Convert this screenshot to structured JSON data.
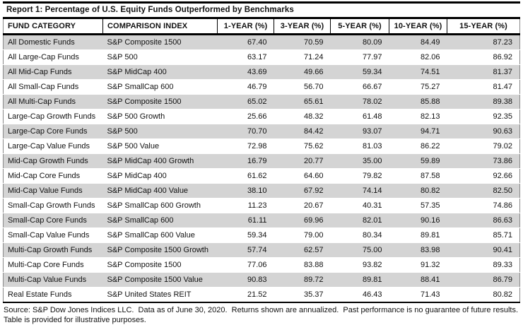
{
  "report": {
    "title": "Report 1: Percentage of U.S. Equity Funds Outperformed by Benchmarks",
    "table": {
      "headers": [
        "FUND CATEGORY",
        "COMPARISON INDEX",
        "1-YEAR (%)",
        "3-YEAR (%)",
        "5-YEAR (%)",
        "10-YEAR (%)",
        "15-YEAR (%)"
      ],
      "rows": [
        [
          "All Domestic Funds",
          "S&P Composite 1500",
          "67.40",
          "70.59",
          "80.09",
          "84.49",
          "87.23"
        ],
        [
          "All Large-Cap Funds",
          "S&P 500",
          "63.17",
          "71.24",
          "77.97",
          "82.06",
          "86.92"
        ],
        [
          "All Mid-Cap Funds",
          "S&P MidCap 400",
          "43.69",
          "49.66",
          "59.34",
          "74.51",
          "81.37"
        ],
        [
          "All Small-Cap Funds",
          "S&P SmallCap 600",
          "46.79",
          "56.70",
          "66.67",
          "75.27",
          "81.47"
        ],
        [
          "All Multi-Cap Funds",
          "S&P Composite 1500",
          "65.02",
          "65.61",
          "78.02",
          "85.88",
          "89.38"
        ],
        [
          "Large-Cap Growth Funds",
          "S&P 500 Growth",
          "25.66",
          "48.32",
          "61.48",
          "82.13",
          "92.35"
        ],
        [
          "Large-Cap Core Funds",
          "S&P 500",
          "70.70",
          "84.42",
          "93.07",
          "94.71",
          "90.63"
        ],
        [
          "Large-Cap Value Funds",
          "S&P 500 Value",
          "72.98",
          "75.62",
          "81.03",
          "86.22",
          "79.02"
        ],
        [
          "Mid-Cap Growth Funds",
          "S&P MidCap 400 Growth",
          "16.79",
          "20.77",
          "35.00",
          "59.89",
          "73.86"
        ],
        [
          "Mid-Cap Core Funds",
          "S&P MidCap 400",
          "61.62",
          "64.60",
          "79.82",
          "87.58",
          "92.66"
        ],
        [
          "Mid-Cap Value Funds",
          "S&P MidCap 400 Value",
          "38.10",
          "67.92",
          "74.14",
          "80.82",
          "82.50"
        ],
        [
          "Small-Cap Growth Funds",
          "S&P SmallCap 600 Growth",
          "11.23",
          "20.67",
          "40.31",
          "57.35",
          "74.86"
        ],
        [
          "Small-Cap Core Funds",
          "S&P SmallCap 600",
          "61.11",
          "69.96",
          "82.01",
          "90.16",
          "86.63"
        ],
        [
          "Small-Cap Value Funds",
          "S&P SmallCap 600 Value",
          "59.34",
          "79.00",
          "80.34",
          "89.81",
          "85.71"
        ],
        [
          "Multi-Cap Growth Funds",
          "S&P Composite 1500 Growth",
          "57.74",
          "62.57",
          "75.00",
          "83.98",
          "90.41"
        ],
        [
          "Multi-Cap Core Funds",
          "S&P Composite 1500",
          "77.06",
          "83.88",
          "93.82",
          "91.32",
          "89.33"
        ],
        [
          "Multi-Cap Value Funds",
          "S&P Composite 1500 Value",
          "90.83",
          "89.72",
          "89.81",
          "88.41",
          "86.79"
        ],
        [
          "Real Estate Funds",
          "S&P United States REIT",
          "21.52",
          "35.37",
          "46.43",
          "71.43",
          "80.82"
        ]
      ]
    },
    "footer": "Source: S&P Dow Jones Indices LLC.  Data as of June 30, 2020.  Returns shown are annualized.  Past performance is no guarantee of future results.  Table is provided for illustrative purposes.",
    "colors": {
      "stripe": "#d4d4d4",
      "border": "#000000",
      "text": "#111111"
    }
  }
}
